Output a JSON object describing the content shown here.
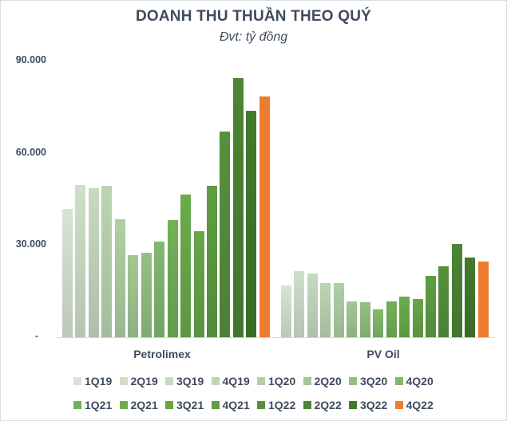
{
  "chart_data": {
    "type": "bar",
    "title": "DOANH THU THUẦN THEO QUÝ",
    "subtitle": "Đvt: tỷ đồng",
    "xlabel": "",
    "ylabel": "",
    "ylim": [
      0,
      90000
    ],
    "yticks": [
      0,
      30000,
      60000,
      90000
    ],
    "ytick_labels": [
      "-",
      "30.000",
      "60.000",
      "90.000"
    ],
    "grid": false,
    "legend_position": "bottom",
    "categories": [
      "Petrolimex",
      "PV Oil"
    ],
    "series": [
      {
        "name": "1Q19",
        "color": "#d7e3d3",
        "values": [
          41800,
          16900
        ]
      },
      {
        "name": "2Q19",
        "color": "#cfdfca",
        "values": [
          49500,
          21500
        ]
      },
      {
        "name": "3Q19",
        "color": "#c6dabf",
        "values": [
          48600,
          20700
        ]
      },
      {
        "name": "4Q19",
        "color": "#bcd5b3",
        "values": [
          49300,
          17600
        ]
      },
      {
        "name": "1Q20",
        "color": "#b0cfa5",
        "values": [
          38400,
          17600
        ]
      },
      {
        "name": "2Q20",
        "color": "#a2c894",
        "values": [
          26700,
          11700
        ]
      },
      {
        "name": "3Q20",
        "color": "#93c083",
        "values": [
          27500,
          11400
        ]
      },
      {
        "name": "4Q20",
        "color": "#82b96f",
        "values": [
          31200,
          9100
        ]
      },
      {
        "name": "1Q21",
        "color": "#72b158",
        "values": [
          38100,
          11700
        ]
      },
      {
        "name": "2Q21",
        "color": "#6aab4c",
        "values": [
          46400,
          13200
        ]
      },
      {
        "name": "3Q21",
        "color": "#67a649",
        "values": [
          34500,
          12500
        ]
      },
      {
        "name": "4Q21",
        "color": "#5f9d43",
        "values": [
          49300,
          20000
        ]
      },
      {
        "name": "1Q22",
        "color": "#55913d",
        "values": [
          66900,
          23100
        ]
      },
      {
        "name": "2Q22",
        "color": "#4b8535",
        "values": [
          84300,
          30300
        ]
      },
      {
        "name": "3Q22",
        "color": "#427a2e",
        "values": [
          73700,
          25900
        ]
      },
      {
        "name": "4Q22",
        "color": "#ed7d31",
        "values": [
          78400,
          24600
        ]
      }
    ]
  },
  "header": {
    "title": "DOANH THU THUẦN THEO QUÝ",
    "subtitle": "Đvt: tỷ đồng"
  },
  "axis": {
    "ticks": [
      {
        "label": "90.000",
        "value": 90000
      },
      {
        "label": "60.000",
        "value": 60000
      },
      {
        "label": "30.000",
        "value": 30000
      },
      {
        "label": "-",
        "value": 0
      }
    ]
  },
  "categories": [
    {
      "label": "Petrolimex"
    },
    {
      "label": "PV Oil"
    }
  ]
}
